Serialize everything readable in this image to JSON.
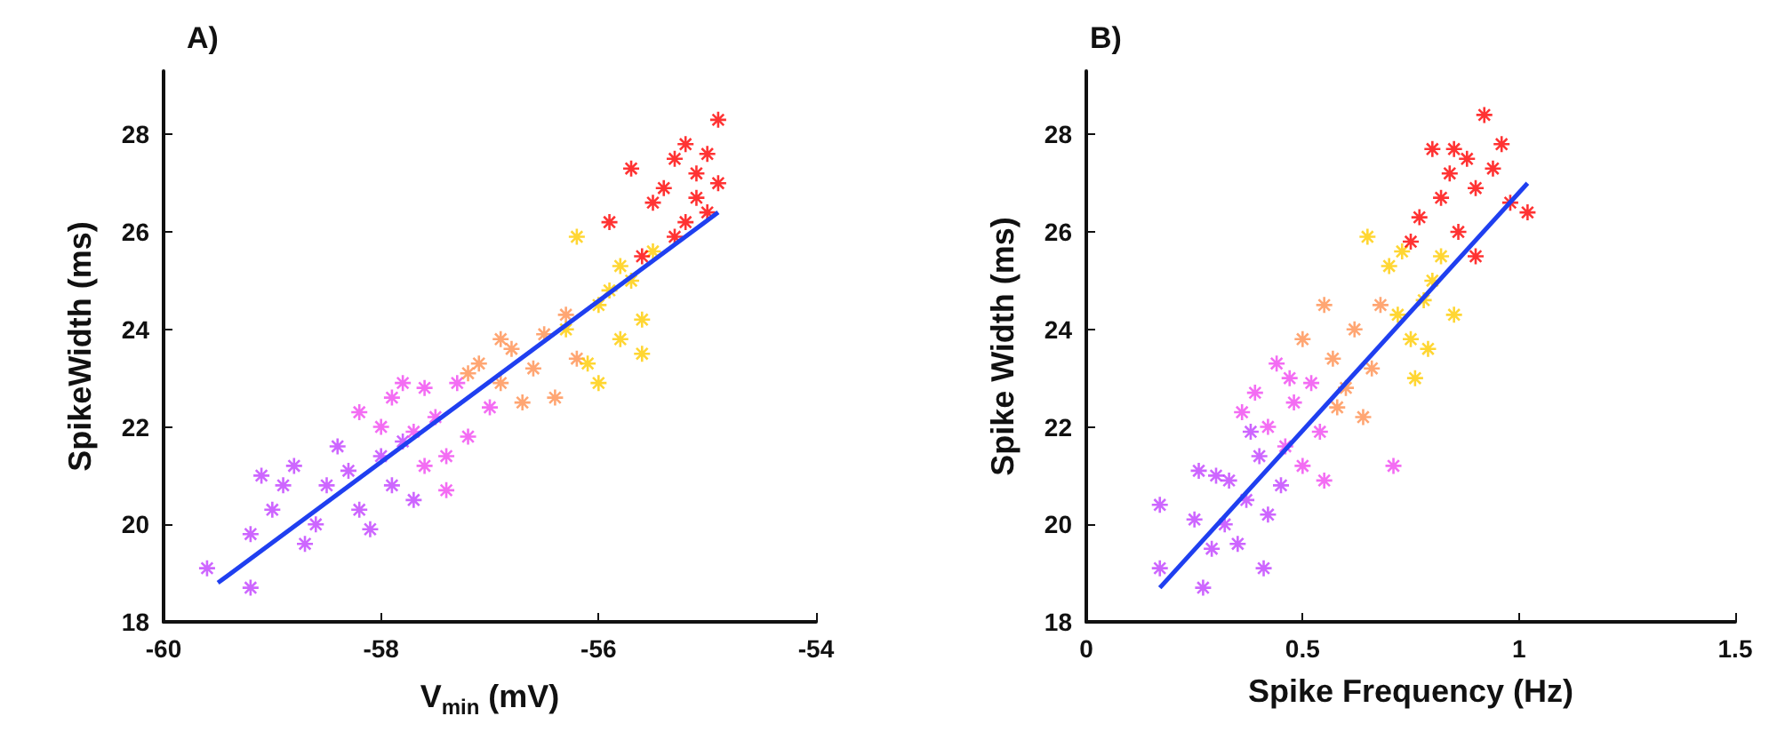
{
  "chart_data": [
    {
      "type": "scatter",
      "title": "A)",
      "xlabel": "V$_{min}$ (mV)",
      "ylabel": "SpikeWidth (ms)",
      "xlim": [
        -60,
        -54
      ],
      "xticks": [
        -60,
        -58,
        -56,
        -54
      ],
      "ylim": [
        18,
        29.3
      ],
      "yticks": [
        18,
        20,
        22,
        24,
        26,
        28
      ],
      "grid": false,
      "marker": "cross",
      "series": [
        {
          "color": "#c040ff",
          "x": [
            -59.6,
            -59.2,
            -59.2,
            -59.0,
            -58.9,
            -58.7,
            -58.6,
            -58.5,
            -58.3,
            -58.2,
            -58.1,
            -58.0,
            -57.9,
            -57.8,
            -57.7,
            -59.1,
            -58.8,
            -58.4
          ],
          "values": [
            19.1,
            18.7,
            19.8,
            20.3,
            20.8,
            19.6,
            20.0,
            20.8,
            21.1,
            20.3,
            19.9,
            21.4,
            20.8,
            21.7,
            20.5,
            21.0,
            21.2,
            21.6
          ]
        },
        {
          "color": "#f048f0",
          "x": [
            -58.2,
            -58.0,
            -57.9,
            -57.7,
            -57.6,
            -57.5,
            -57.4,
            -57.3,
            -57.2,
            -57.0,
            -57.6,
            -57.8,
            -57.4
          ],
          "values": [
            22.3,
            22.0,
            22.6,
            21.9,
            22.8,
            22.2,
            21.4,
            22.9,
            21.8,
            22.4,
            21.2,
            22.9,
            20.7
          ]
        },
        {
          "color": "#ff9050",
          "x": [
            -57.1,
            -56.9,
            -56.8,
            -56.7,
            -56.6,
            -56.5,
            -56.4,
            -56.3,
            -56.2,
            -56.9,
            -57.2
          ],
          "values": [
            23.3,
            22.9,
            23.6,
            22.5,
            23.2,
            23.9,
            22.6,
            24.3,
            23.4,
            23.8,
            23.1
          ]
        },
        {
          "color": "#ffcc00",
          "x": [
            -56.3,
            -56.1,
            -56.0,
            -55.9,
            -55.8,
            -55.7,
            -55.6,
            -55.8,
            -56.2,
            -55.6,
            -56.0,
            -55.5
          ],
          "values": [
            24.0,
            23.3,
            24.5,
            24.8,
            23.8,
            25.0,
            24.2,
            25.3,
            25.9,
            23.5,
            22.9,
            25.6
          ]
        },
        {
          "color": "#ff0000",
          "x": [
            -55.9,
            -55.7,
            -55.5,
            -55.4,
            -55.3,
            -55.2,
            -55.1,
            -55.0,
            -55.1,
            -54.9,
            -55.0,
            -55.3,
            -55.6,
            -55.2,
            -54.9
          ],
          "values": [
            26.2,
            27.3,
            26.6,
            26.9,
            27.5,
            27.8,
            27.2,
            27.6,
            26.7,
            28.3,
            26.4,
            25.9,
            25.5,
            26.2,
            27.0
          ]
        },
        {
          "type": "line",
          "marker": "none",
          "color": "#1f3ff0",
          "x": [
            -59.5,
            -54.9
          ],
          "values": [
            18.8,
            26.4
          ]
        }
      ]
    },
    {
      "type": "scatter",
      "title": "B)",
      "xlabel": "Spike Frequency (Hz)",
      "ylabel": "Spike Width (ms)",
      "xlim": [
        0,
        1.5
      ],
      "xticks": [
        0,
        0.5,
        1,
        1.5
      ],
      "ylim": [
        18,
        29.3
      ],
      "yticks": [
        18,
        20,
        22,
        24,
        26,
        28
      ],
      "grid": false,
      "marker": "cross",
      "series": [
        {
          "color": "#c040ff",
          "x": [
            0.17,
            0.17,
            0.27,
            0.25,
            0.26,
            0.29,
            0.32,
            0.33,
            0.35,
            0.37,
            0.4,
            0.42,
            0.38,
            0.45,
            0.41,
            0.3
          ],
          "values": [
            20.4,
            19.1,
            18.7,
            20.1,
            21.1,
            19.5,
            20.0,
            20.9,
            19.6,
            20.5,
            21.4,
            20.2,
            21.9,
            20.8,
            19.1,
            21.0
          ]
        },
        {
          "color": "#f048f0",
          "x": [
            0.36,
            0.39,
            0.42,
            0.44,
            0.46,
            0.48,
            0.5,
            0.52,
            0.54,
            0.47,
            0.71,
            0.55
          ],
          "values": [
            22.3,
            22.7,
            22.0,
            23.3,
            21.6,
            22.5,
            21.2,
            22.9,
            21.9,
            23.0,
            21.2,
            20.9
          ]
        },
        {
          "color": "#ff9050",
          "x": [
            0.5,
            0.55,
            0.57,
            0.6,
            0.62,
            0.64,
            0.66,
            0.68,
            0.58
          ],
          "values": [
            23.8,
            24.5,
            23.4,
            22.8,
            24.0,
            22.2,
            23.2,
            24.5,
            22.4
          ]
        },
        {
          "color": "#ffcc00",
          "x": [
            0.65,
            0.7,
            0.72,
            0.75,
            0.76,
            0.78,
            0.8,
            0.82,
            0.85,
            0.73,
            0.79
          ],
          "values": [
            25.9,
            25.3,
            24.3,
            23.8,
            23.0,
            24.6,
            25.0,
            25.5,
            24.3,
            25.6,
            23.6
          ]
        },
        {
          "color": "#ff0000",
          "x": [
            0.75,
            0.77,
            0.8,
            0.82,
            0.84,
            0.86,
            0.88,
            0.9,
            0.92,
            0.94,
            0.96,
            0.98,
            1.02,
            0.85,
            0.9
          ],
          "values": [
            25.8,
            26.3,
            27.7,
            26.7,
            27.2,
            26.0,
            27.5,
            26.9,
            28.4,
            27.3,
            27.8,
            26.6,
            26.4,
            27.7,
            25.5
          ]
        },
        {
          "type": "line",
          "marker": "none",
          "color": "#1f3ff0",
          "x": [
            0.17,
            1.02
          ],
          "values": [
            18.7,
            27.0
          ]
        }
      ]
    }
  ]
}
